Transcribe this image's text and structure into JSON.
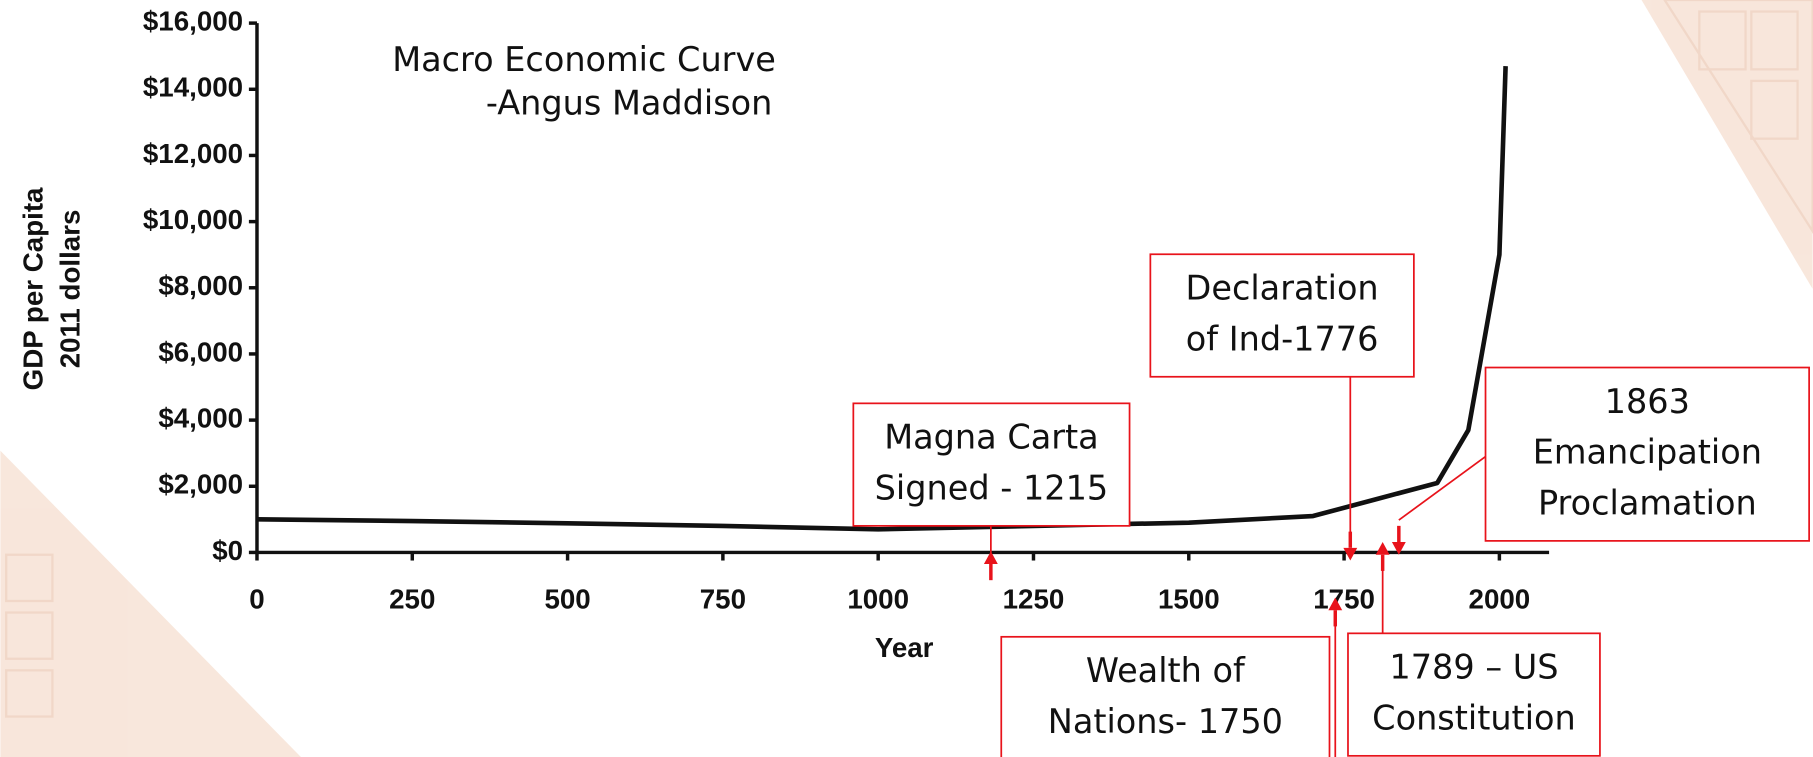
{
  "chart_data": {
    "type": "line",
    "title": [
      "Macro Economic Curve",
      "-Angus Maddison"
    ],
    "ylabel": [
      "GDP per Capita",
      "2011 dollars"
    ],
    "xlabel": "Year",
    "x": [
      0,
      250,
      500,
      750,
      1000,
      1250,
      1500,
      1700,
      1800,
      1900,
      1950,
      2000,
      2010
    ],
    "series": [
      {
        "color": "#111111",
        "values": [
          1000,
          950,
          880,
          800,
          700,
          800,
          900,
          1100,
          1600,
          2100,
          3700,
          9000,
          14700
        ]
      }
    ],
    "xlim": [
      0,
      2080
    ],
    "xticks": [
      0,
      250,
      500,
      750,
      1000,
      1250,
      1500,
      1750,
      2000
    ],
    "ylim": [
      0,
      16000
    ],
    "yticks": [
      {
        "value": 0,
        "label": "$0"
      },
      {
        "value": 2000,
        "label": "$2,000"
      },
      {
        "value": 4000,
        "label": "$4,000"
      },
      {
        "value": 6000,
        "label": "$6,000"
      },
      {
        "value": 8000,
        "label": "$8,000"
      },
      {
        "value": 10000,
        "label": "$10,000"
      },
      {
        "value": 12000,
        "label": "$12,000"
      },
      {
        "value": 14000,
        "label": "$14,000"
      },
      {
        "value": 16000,
        "label": "$16,000"
      }
    ],
    "annotations": [
      [
        "Magna Carta",
        "Signed - 1215"
      ],
      [
        "Declaration",
        "of Ind-1776"
      ],
      [
        "1863",
        "Emancipation",
        "Proclamation"
      ],
      [
        "Wealth of",
        "Nations- 1750"
      ],
      [
        "1789 – US",
        "Constitution"
      ]
    ],
    "annotation_color": "#e8131b"
  }
}
